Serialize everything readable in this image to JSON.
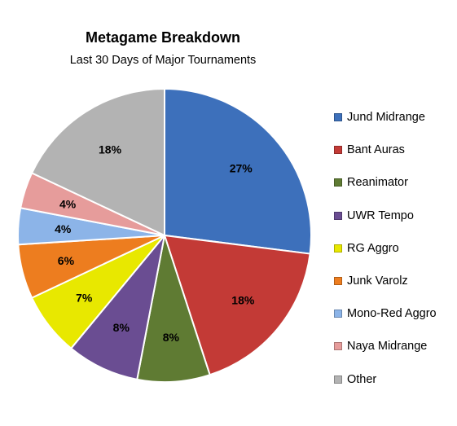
{
  "chart_data": {
    "type": "pie",
    "title": "Metagame Breakdown",
    "subtitle": "Last 30 Days of Major Tournaments",
    "legend_position": "right",
    "categories": [
      "Jund Midrange",
      "Bant Auras",
      "Reanimator",
      "UWR Tempo",
      "RG Aggro",
      "Junk Varolz",
      "Mono-Red Aggro",
      "Naya Midrange",
      "Other"
    ],
    "values": [
      27,
      18,
      8,
      8,
      7,
      6,
      4,
      4,
      18
    ],
    "data_labels": [
      "27%",
      "18%",
      "8%",
      "8%",
      "7%",
      "6%",
      "4%",
      "4%",
      "18%"
    ],
    "colors": [
      "#3d70bb",
      "#c33a36",
      "#5f7b33",
      "#6a4d92",
      "#e8e800",
      "#ed7d1f",
      "#8cb4e8",
      "#e69c9b",
      "#b3b3b3"
    ]
  }
}
